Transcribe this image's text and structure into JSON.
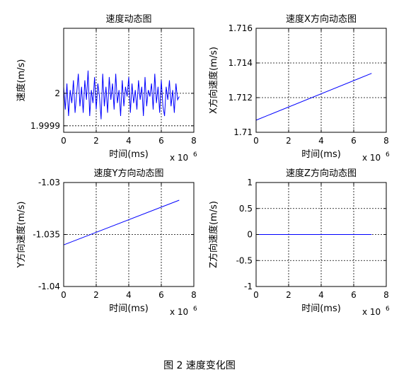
{
  "caption": "图 2 速度变化图",
  "chart_data": [
    {
      "type": "line",
      "title": "速度动态图",
      "xlabel": "时间(ms)",
      "ylabel": "速度(m/s)",
      "x_exponent_label": "x 10",
      "x_exponent": "6",
      "xlim": [
        0,
        8
      ],
      "ylim": [
        1.99988,
        2.0002
      ],
      "xticks": [
        0,
        2,
        4,
        6,
        8
      ],
      "xtick_labels": [
        "0",
        "2",
        "4",
        "6",
        "8"
      ],
      "yticks": [
        1.9999,
        2.0
      ],
      "ytick_labels": [
        "1.9999",
        "2"
      ],
      "grid": true,
      "color": "#0000ff",
      "series": [
        {
          "x": [
            0.0,
            0.1,
            0.2,
            0.3,
            0.4,
            0.5,
            0.6,
            0.7,
            0.8,
            0.9,
            1.0,
            1.1,
            1.2,
            1.3,
            1.4,
            1.5,
            1.6,
            1.7,
            1.8,
            1.9,
            2.0,
            2.1,
            2.2,
            2.3,
            2.4,
            2.5,
            2.6,
            2.7,
            2.8,
            2.9,
            3.0,
            3.1,
            3.2,
            3.3,
            3.4,
            3.5,
            3.6,
            3.7,
            3.8,
            3.9,
            4.0,
            4.1,
            4.2,
            4.3,
            4.4,
            4.5,
            4.6,
            4.7,
            4.8,
            4.9,
            5.0,
            5.1,
            5.2,
            5.3,
            5.4,
            5.5,
            5.6,
            5.7,
            5.8,
            5.9,
            6.0,
            6.1,
            6.2,
            6.3,
            6.4,
            6.5,
            6.6,
            6.7,
            6.8,
            6.9,
            7.0,
            7.1
          ],
          "values": [
            2.00002,
            1.99995,
            2.00003,
            1.99993,
            2.00001,
            1.99997,
            2.00004,
            1.99994,
            2.0,
            2.00006,
            1.99996,
            2.00002,
            1.99994,
            2.00004,
            1.99998,
            2.00007,
            1.99993,
            2.00001,
            1.99997,
            2.00005,
            1.99995,
            2.00003,
            1.99999,
            1.99992,
            2.00006,
            1.99996,
            2.00002,
            1.99994,
            2.00005,
            1.99998,
            2.00003,
            1.99995,
            2.00006,
            1.99997,
            2.00001,
            1.99993,
            2.00004,
            1.99996,
            2.00002,
            1.99999,
            2.00005,
            1.99994,
            2.00003,
            1.99997,
            2.00001,
            1.99995,
            2.00004,
            1.99998,
            2.00002,
            1.99993,
            2.00005,
            1.99996,
            2.00001,
            1.99999,
            2.00003,
            1.99995,
            2.00006,
            1.99997,
            2.00002,
            1.99994,
            2.00004,
            1.99996,
            1.99993,
            2.00002,
            1.99998,
            2.00004,
            1.99996,
            2.00001,
            1.99994,
            2.00003,
            1.99998,
            1.99999
          ]
        }
      ]
    },
    {
      "type": "line",
      "title": "速度X方向动态图",
      "xlabel": "时间(ms)",
      "ylabel": "X方向速度(m/s)",
      "x_exponent_label": "x 10",
      "x_exponent": "6",
      "xlim": [
        0,
        8
      ],
      "ylim": [
        1.71,
        1.716
      ],
      "xticks": [
        0,
        2,
        4,
        6,
        8
      ],
      "xtick_labels": [
        "0",
        "2",
        "4",
        "6",
        "8"
      ],
      "yticks": [
        1.71,
        1.712,
        1.714,
        1.716
      ],
      "ytick_labels": [
        "1.71",
        "1.712",
        "1.714",
        "1.716"
      ],
      "grid": true,
      "color": "#0000ff",
      "series": [
        {
          "x": [
            0,
            7.1
          ],
          "values": [
            1.7107,
            1.7134
          ]
        }
      ]
    },
    {
      "type": "line",
      "title": "速度Y方向动态图",
      "xlabel": "时间(ms)",
      "ylabel": "Y方向速度(m/s)",
      "x_exponent_label": "x 10",
      "x_exponent": "6",
      "xlim": [
        0,
        8
      ],
      "ylim": [
        -1.04,
        -1.03
      ],
      "xticks": [
        0,
        2,
        4,
        6,
        8
      ],
      "xtick_labels": [
        "0",
        "2",
        "4",
        "6",
        "8"
      ],
      "yticks": [
        -1.04,
        -1.035,
        -1.03
      ],
      "ytick_labels": [
        "-1.04",
        "-1.035",
        "-1.03"
      ],
      "grid": true,
      "color": "#0000ff",
      "series": [
        {
          "x": [
            0,
            7.1
          ],
          "values": [
            -1.036,
            -1.0317
          ]
        }
      ]
    },
    {
      "type": "line",
      "title": "速度Z方向动态图",
      "xlabel": "时间(ms)",
      "ylabel": "Z方向速度(m/s)",
      "x_exponent_label": "x 10",
      "x_exponent": "6",
      "xlim": [
        0,
        8
      ],
      "ylim": [
        -1,
        1
      ],
      "xticks": [
        0,
        2,
        4,
        6,
        8
      ],
      "xtick_labels": [
        "0",
        "2",
        "4",
        "6",
        "8"
      ],
      "yticks": [
        -1,
        -0.5,
        0,
        0.5,
        1
      ],
      "ytick_labels": [
        "-1",
        "-0.5",
        "0",
        "0.5",
        "1"
      ],
      "grid": true,
      "color": "#0000ff",
      "series": [
        {
          "x": [
            0,
            7.1
          ],
          "values": [
            0,
            0
          ]
        }
      ]
    }
  ]
}
